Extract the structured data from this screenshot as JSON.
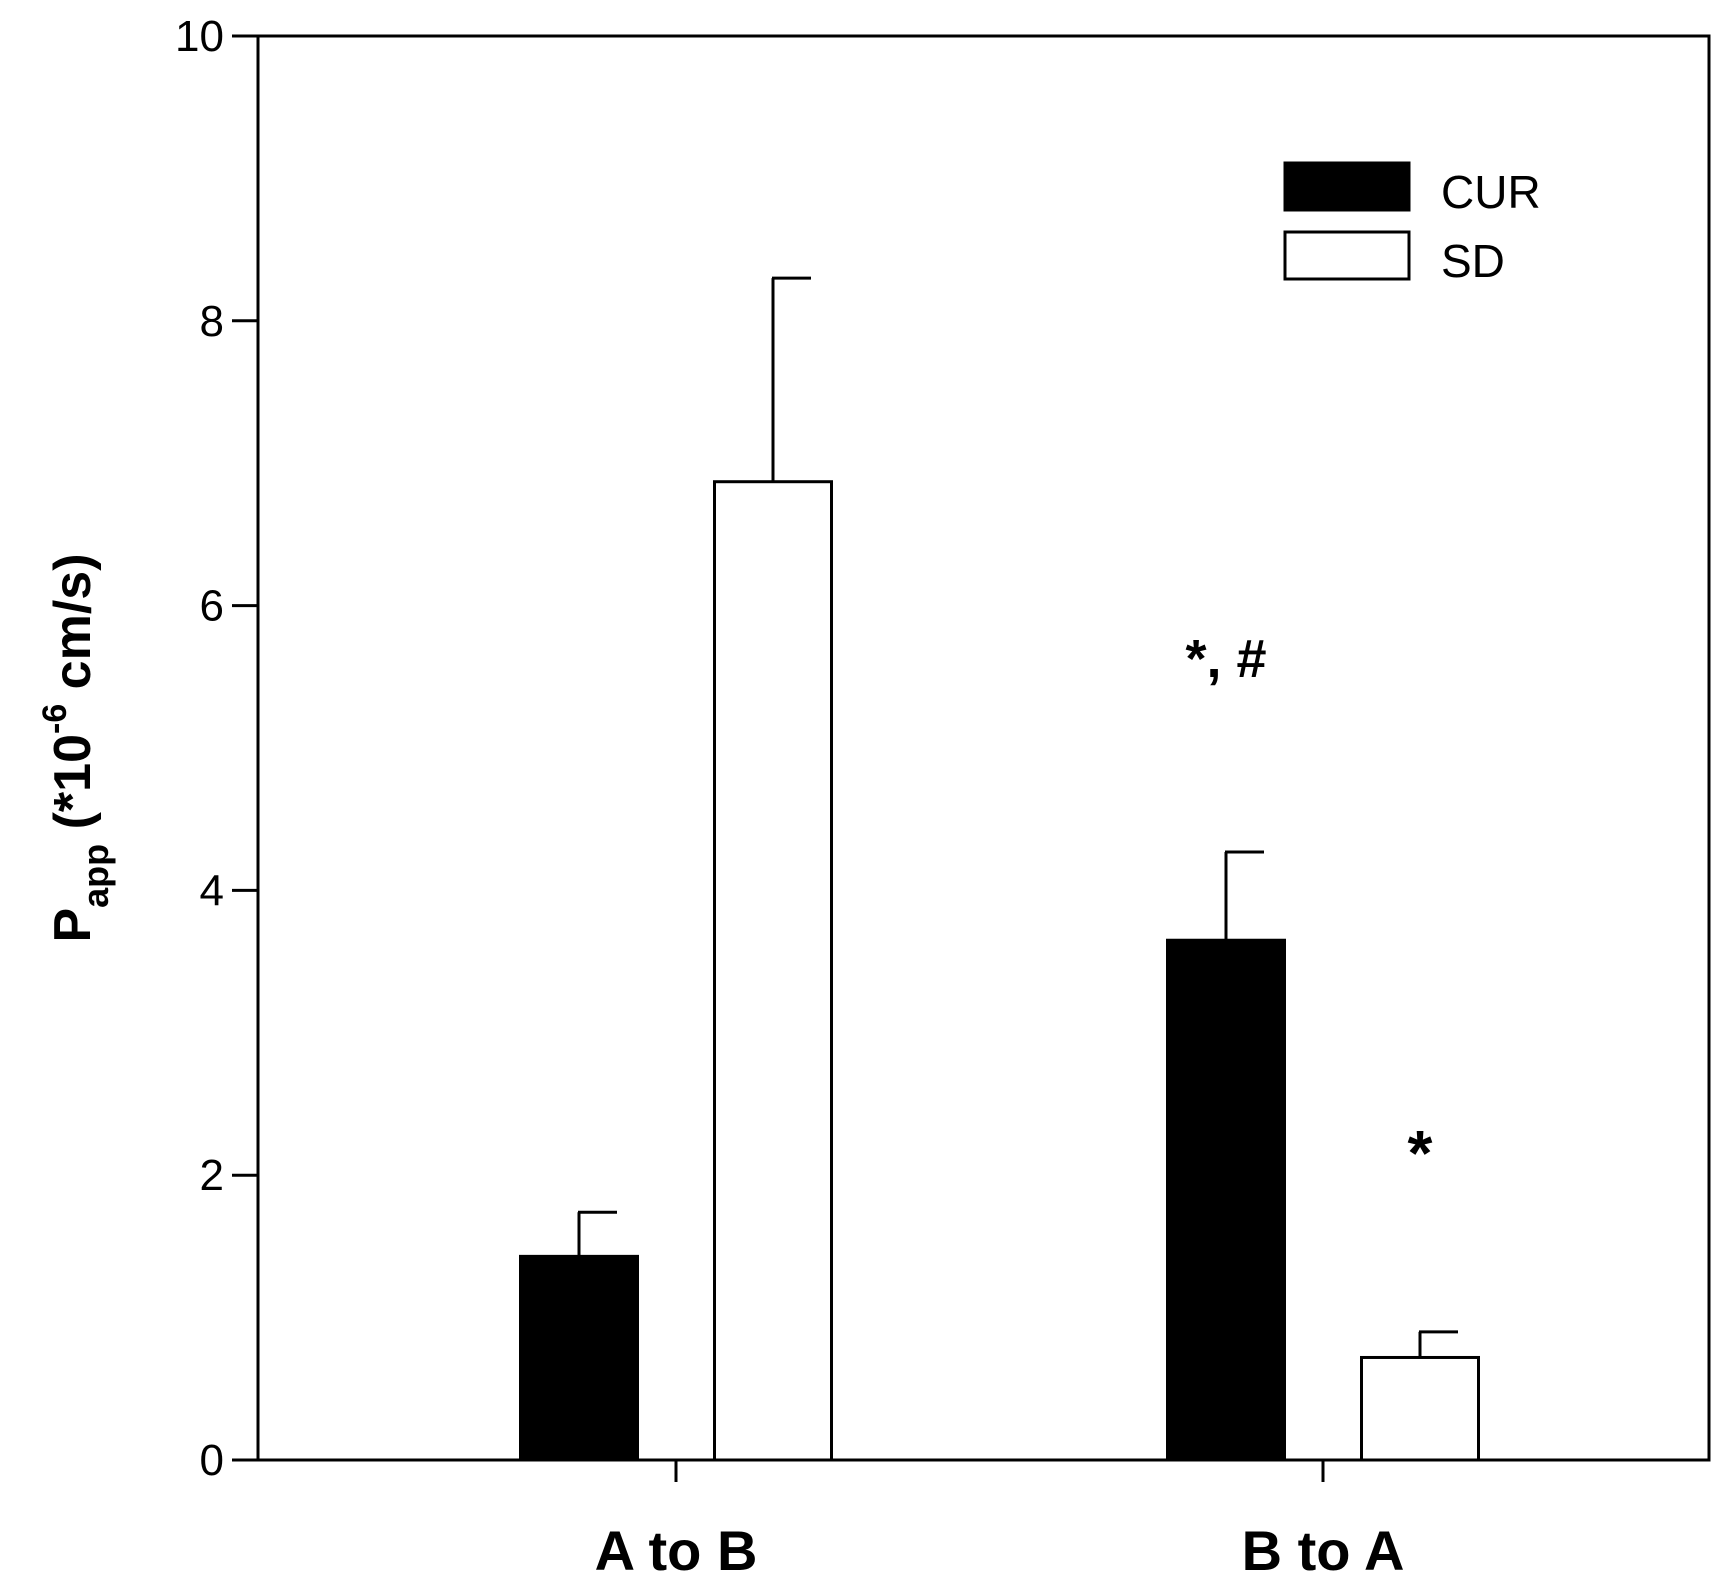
{
  "chart_data": {
    "type": "bar",
    "categories": [
      "A to B",
      "B to A"
    ],
    "series": [
      {
        "name": "CUR",
        "color": "#000000",
        "values": [
          1.43,
          3.65
        ],
        "errors": [
          0.31,
          0.62
        ]
      },
      {
        "name": "SD",
        "color": "#ffffff",
        "values": [
          6.87,
          0.72
        ],
        "errors": [
          1.43,
          0.18
        ]
      }
    ],
    "ylim": [
      0,
      10
    ],
    "yticks": [
      "0",
      "2",
      "4",
      "6",
      "8",
      "10"
    ],
    "ylabel": {
      "main": "P",
      "sub": "app",
      "rest1": " (*10",
      "sup": "-6",
      "rest2": " cm/s)"
    },
    "xlabel": "",
    "legend": {
      "position": "top-right"
    },
    "grid": false,
    "annotations": [
      {
        "text": "*, #",
        "category": 1,
        "series": 0,
        "y": 5.5
      },
      {
        "text": "*",
        "category": 1,
        "series": 1,
        "y": 2.0
      }
    ]
  }
}
